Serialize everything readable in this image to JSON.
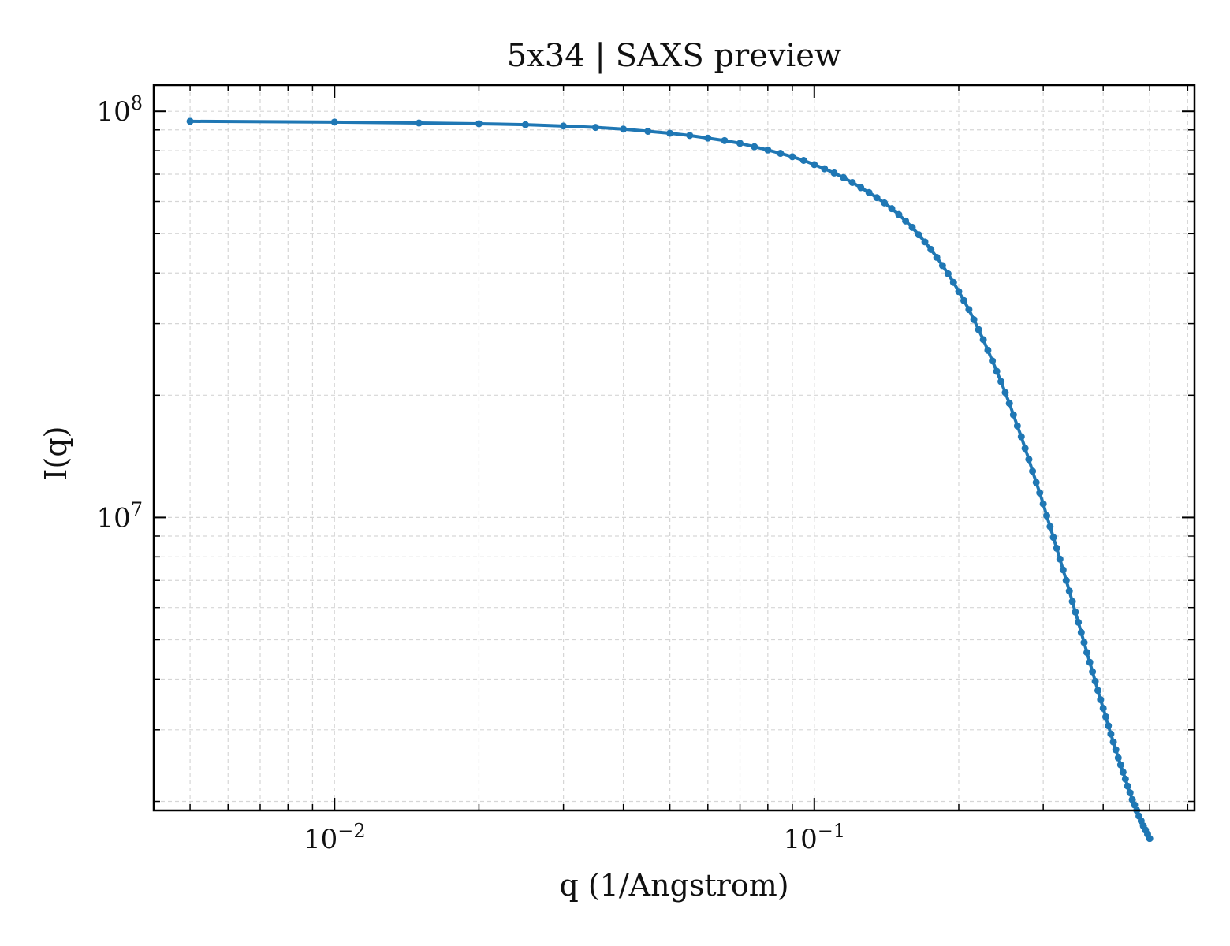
{
  "chart_data": {
    "type": "line",
    "title": "5x34 | SAXS preview",
    "xlabel": "q (1/Angstrom)",
    "ylabel": "I(q)",
    "x_scale": "log",
    "y_scale": "log",
    "xlim": [
      0.0042,
      0.62
    ],
    "ylim": [
      1900000,
      116000000
    ],
    "grid": true,
    "color": "#1f77b4",
    "x_ticks": [
      {
        "value": 0.01,
        "base": "10",
        "exp": "−2"
      },
      {
        "value": 0.1,
        "base": "10",
        "exp": "−1"
      }
    ],
    "y_ticks": [
      {
        "value": 10000000,
        "base": "10",
        "exp": "7"
      },
      {
        "value": 100000000,
        "base": "10",
        "exp": "8"
      }
    ],
    "series": [
      {
        "x": [
          0.005,
          0.01,
          0.015,
          0.02,
          0.025,
          0.03,
          0.035,
          0.04,
          0.045,
          0.05,
          0.055,
          0.06,
          0.065,
          0.07,
          0.075,
          0.08,
          0.085,
          0.09,
          0.095,
          0.1,
          0.105,
          0.11,
          0.115,
          0.12,
          0.125,
          0.13,
          0.135,
          0.14,
          0.145,
          0.15,
          0.155,
          0.16,
          0.165,
          0.17,
          0.175,
          0.18,
          0.185,
          0.19,
          0.195,
          0.2,
          0.205,
          0.21,
          0.215,
          0.22,
          0.225,
          0.23,
          0.235,
          0.24,
          0.245,
          0.25,
          0.255,
          0.26,
          0.265,
          0.27,
          0.275,
          0.28,
          0.285,
          0.29,
          0.295,
          0.3,
          0.305,
          0.31,
          0.315,
          0.32,
          0.325,
          0.33,
          0.335,
          0.34,
          0.345,
          0.35,
          0.355,
          0.36,
          0.365,
          0.37,
          0.375,
          0.38,
          0.385,
          0.39,
          0.395,
          0.4,
          0.405,
          0.41,
          0.415,
          0.42,
          0.425,
          0.43,
          0.435,
          0.44,
          0.445,
          0.45,
          0.455,
          0.46,
          0.465,
          0.47,
          0.475,
          0.48,
          0.485,
          0.49,
          0.495,
          0.5
        ],
        "y": [
          94500000,
          94100000,
          93600000,
          93200000,
          92700000,
          92000000,
          91300000,
          90400000,
          89300000,
          88300000,
          87200000,
          85900000,
          84700000,
          83400000,
          81800000,
          80300000,
          78800000,
          77300000,
          75700000,
          73900000,
          72200000,
          70500000,
          68700000,
          66800000,
          64900000,
          63100000,
          61300000,
          59500000,
          57600000,
          55700000,
          53700000,
          51800000,
          49700000,
          47700000,
          45700000,
          43700000,
          41700000,
          39800000,
          37900000,
          36000000,
          34200000,
          32500000,
          30700000,
          29000000,
          27400000,
          25800000,
          24300000,
          22900000,
          21600000,
          20300000,
          19100000,
          17900000,
          16800000,
          15800000,
          14800000,
          13900000,
          13000000,
          12200000,
          11500000,
          10800000,
          10100000,
          9500000,
          8930000,
          8400000,
          7900000,
          7430000,
          7000000,
          6590000,
          6210000,
          5850000,
          5520000,
          5210000,
          4920000,
          4650000,
          4400000,
          4170000,
          3950000,
          3750000,
          3560000,
          3390000,
          3230000,
          3070000,
          2930000,
          2800000,
          2680000,
          2560000,
          2460000,
          2360000,
          2270000,
          2180000,
          2100000,
          2020000,
          1960000,
          1900000,
          1840000,
          1790000,
          1740000,
          1700000,
          1660000,
          1620000
        ]
      }
    ]
  }
}
